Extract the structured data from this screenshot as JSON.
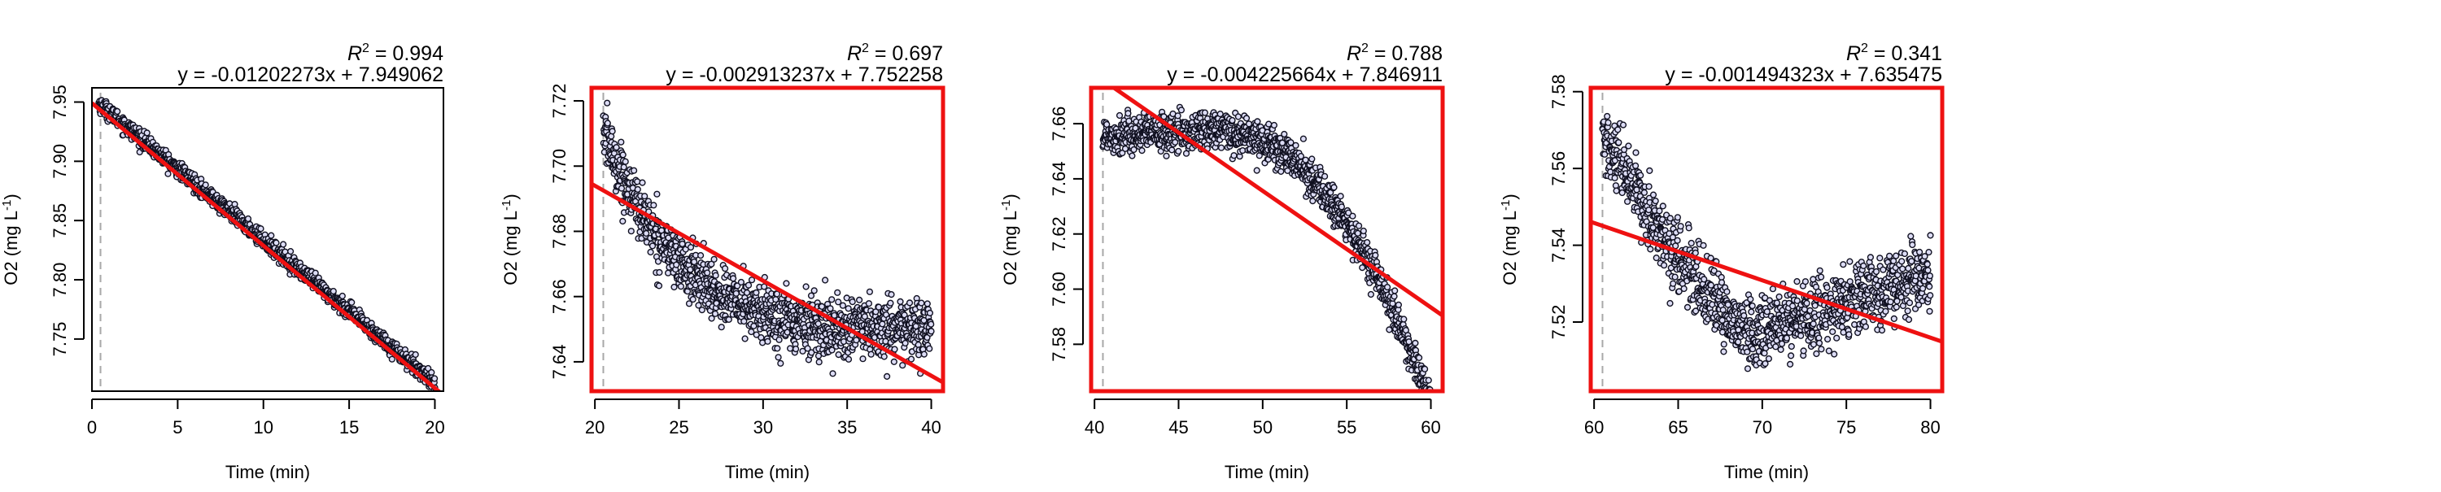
{
  "chart_data": [
    {
      "type": "scatter",
      "xlabel": "Time (min)",
      "ylabel_main": "O2 (mg L",
      "ylabel_sup": "-1",
      "ylabel_tail": ")",
      "r2_label": "R",
      "r2_value": "= 0.994",
      "equation": "y = -0.01202273x + 7.949062",
      "xlim": [
        0,
        20.5
      ],
      "ylim": [
        7.706,
        7.962
      ],
      "x_ticks": [
        0,
        5,
        10,
        15,
        20
      ],
      "y_ticks": [
        7.75,
        7.8,
        7.85,
        7.9,
        7.95
      ],
      "y_tick_labels": [
        "7.75",
        "7.80",
        "7.85",
        "7.90",
        "7.95"
      ],
      "fit": {
        "slope": -0.01202273,
        "intercept": 7.949062
      },
      "marker_x": 0.5,
      "highlight_box": false,
      "points": {
        "x_start": 0.4,
        "x_end": 20.0,
        "shape": "linear",
        "params": [
          -0.01202273,
          7.9535
        ],
        "noise": 0.0035
      }
    },
    {
      "type": "scatter",
      "xlabel": "Time (min)",
      "ylabel_main": "O2 (mg L",
      "ylabel_sup": "-1",
      "ylabel_tail": ")",
      "r2_label": "R",
      "r2_value": "= 0.697",
      "equation": "y = -0.002913237x + 7.752258",
      "xlim": [
        19.8,
        40.7
      ],
      "ylim": [
        7.631,
        7.724
      ],
      "x_ticks": [
        20,
        25,
        30,
        35,
        40
      ],
      "y_ticks": [
        7.64,
        7.66,
        7.68,
        7.7,
        7.72
      ],
      "y_tick_labels": [
        "7.64",
        "7.66",
        "7.68",
        "7.70",
        "7.72"
      ],
      "fit": {
        "slope": -0.002913237,
        "intercept": 7.752258
      },
      "marker_x": 20.5,
      "highlight_box": true,
      "points": {
        "x_start": 20.5,
        "x_end": 40.0,
        "shape": "decay",
        "params": [
          7.647,
          0.064,
          0.22,
          32.0,
          0.00022
        ],
        "noise": 0.0045
      }
    },
    {
      "type": "scatter",
      "xlabel": "Time (min)",
      "ylabel_main": "O2 (mg L",
      "ylabel_sup": "-1",
      "ylabel_tail": ")",
      "r2_label": "R",
      "r2_value": "= 0.788",
      "equation": "y = -0.004225664x + 7.846911",
      "xlim": [
        39.8,
        60.7
      ],
      "ylim": [
        7.563,
        7.673
      ],
      "x_ticks": [
        40,
        45,
        50,
        55,
        60
      ],
      "y_ticks": [
        7.58,
        7.6,
        7.62,
        7.64,
        7.66
      ],
      "y_tick_labels": [
        "7.58",
        "7.60",
        "7.62",
        "7.64",
        "7.66"
      ],
      "fit": {
        "slope": -0.004225664,
        "intercept": 7.846911
      },
      "marker_x": 40.5,
      "highlight_box": true,
      "points": {
        "x_start": 40.5,
        "x_end": 60.0,
        "shape": "plateau_drop",
        "params": [
          7.6565,
          48.0,
          0.00068
        ],
        "noise": 0.0035
      }
    },
    {
      "type": "scatter",
      "xlabel": "Time (min)",
      "ylabel_main": "O2 (mg L",
      "ylabel_sup": "-1",
      "ylabel_tail": ")",
      "r2_label": "R",
      "r2_value": "= 0.341",
      "equation": "y = -0.001494323x + 7.635475",
      "xlim": [
        59.8,
        80.7
      ],
      "ylim": [
        7.502,
        7.581
      ],
      "x_ticks": [
        60,
        65,
        70,
        75,
        80
      ],
      "y_ticks": [
        7.52,
        7.54,
        7.56,
        7.58
      ],
      "y_tick_labels": [
        "7.52",
        "7.54",
        "7.56",
        "7.58"
      ],
      "fit": {
        "slope": -0.001494323,
        "intercept": 7.635475
      },
      "marker_x": 60.5,
      "highlight_box": true,
      "points": {
        "x_start": 60.5,
        "x_end": 80.0,
        "shape": "vshape",
        "params": [
          7.568,
          69.5,
          7.517,
          7.532
        ],
        "noise": 0.0045
      }
    }
  ]
}
